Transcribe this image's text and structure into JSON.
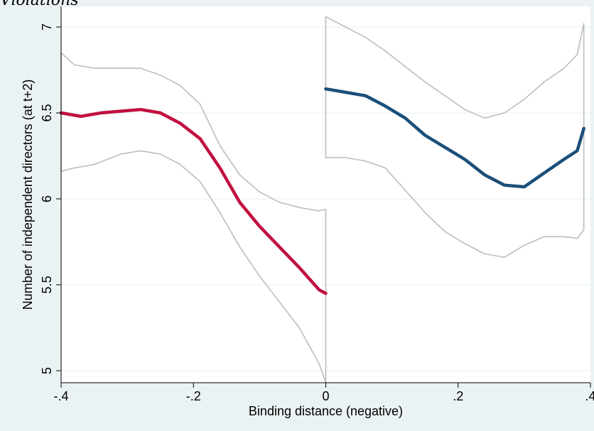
{
  "heading": "Violations",
  "chart_data": {
    "type": "line",
    "title": "",
    "xlabel": "Binding distance (negative)",
    "ylabel": "Number of independent directors (at t+2)",
    "xlim": [
      -0.4,
      0.4
    ],
    "ylim": [
      4.93,
      7.12
    ],
    "x_ticks": [
      -0.4,
      -0.2,
      0,
      0.2,
      0.4
    ],
    "x_tick_labels": [
      "-.4",
      "-.2",
      "0",
      ".2",
      ".4"
    ],
    "y_ticks": [
      5,
      5.5,
      6,
      6.5,
      7
    ],
    "y_tick_labels": [
      "5",
      "5.5",
      "6",
      "6.5",
      "7"
    ],
    "grid": "horizontal",
    "legend": "none",
    "colors": {
      "plot_background": "#ffffff",
      "outer_background": "#eaf2f3",
      "left_fit": "#c1103f",
      "right_fit": "#1a4f7a",
      "confidence_band": "#bdbdbd"
    },
    "series": [
      {
        "group": "left",
        "role": "fit",
        "x": [
          -0.4,
          -0.37,
          -0.34,
          -0.31,
          -0.28,
          -0.25,
          -0.22,
          -0.19,
          -0.16,
          -0.13,
          -0.1,
          -0.07,
          -0.04,
          -0.01,
          0
        ],
        "y": [
          6.5,
          6.48,
          6.5,
          6.51,
          6.52,
          6.5,
          6.44,
          6.35,
          6.18,
          5.98,
          5.84,
          5.72,
          5.6,
          5.47,
          5.45
        ]
      },
      {
        "group": "left",
        "role": "upper-ci",
        "x": [
          -0.4,
          -0.38,
          -0.35,
          -0.31,
          -0.28,
          -0.25,
          -0.22,
          -0.19,
          -0.16,
          -0.13,
          -0.1,
          -0.07,
          -0.04,
          -0.01,
          0
        ],
        "y": [
          6.85,
          6.78,
          6.76,
          6.76,
          6.76,
          6.72,
          6.66,
          6.55,
          6.31,
          6.14,
          6.04,
          5.98,
          5.95,
          5.93,
          5.94
        ]
      },
      {
        "group": "left",
        "role": "lower-ci",
        "x": [
          -0.4,
          -0.38,
          -0.35,
          -0.31,
          -0.28,
          -0.25,
          -0.22,
          -0.19,
          -0.16,
          -0.13,
          -0.1,
          -0.07,
          -0.04,
          -0.01,
          0
        ],
        "y": [
          6.16,
          6.18,
          6.2,
          6.26,
          6.28,
          6.26,
          6.2,
          6.1,
          5.92,
          5.72,
          5.55,
          5.4,
          5.25,
          5.04,
          4.93
        ]
      },
      {
        "group": "right",
        "role": "fit",
        "x": [
          0,
          0.03,
          0.06,
          0.09,
          0.12,
          0.15,
          0.18,
          0.21,
          0.24,
          0.27,
          0.3,
          0.33,
          0.36,
          0.38,
          0.39
        ],
        "y": [
          6.64,
          6.62,
          6.6,
          6.54,
          6.47,
          6.37,
          6.3,
          6.23,
          6.14,
          6.08,
          6.07,
          6.15,
          6.23,
          6.28,
          6.41
        ]
      },
      {
        "group": "right",
        "role": "upper-ci",
        "x": [
          0,
          0.03,
          0.06,
          0.09,
          0.12,
          0.15,
          0.18,
          0.21,
          0.24,
          0.27,
          0.3,
          0.33,
          0.36,
          0.38,
          0.39
        ],
        "y": [
          7.06,
          7.0,
          6.94,
          6.86,
          6.77,
          6.68,
          6.6,
          6.52,
          6.47,
          6.5,
          6.58,
          6.68,
          6.76,
          6.84,
          7.02
        ]
      },
      {
        "group": "right",
        "role": "lower-ci",
        "x": [
          0,
          0.03,
          0.06,
          0.09,
          0.12,
          0.15,
          0.18,
          0.21,
          0.24,
          0.27,
          0.3,
          0.33,
          0.36,
          0.38,
          0.39
        ],
        "y": [
          6.24,
          6.24,
          6.22,
          6.18,
          6.05,
          5.92,
          5.81,
          5.74,
          5.68,
          5.66,
          5.73,
          5.78,
          5.78,
          5.77,
          5.82
        ]
      }
    ]
  }
}
